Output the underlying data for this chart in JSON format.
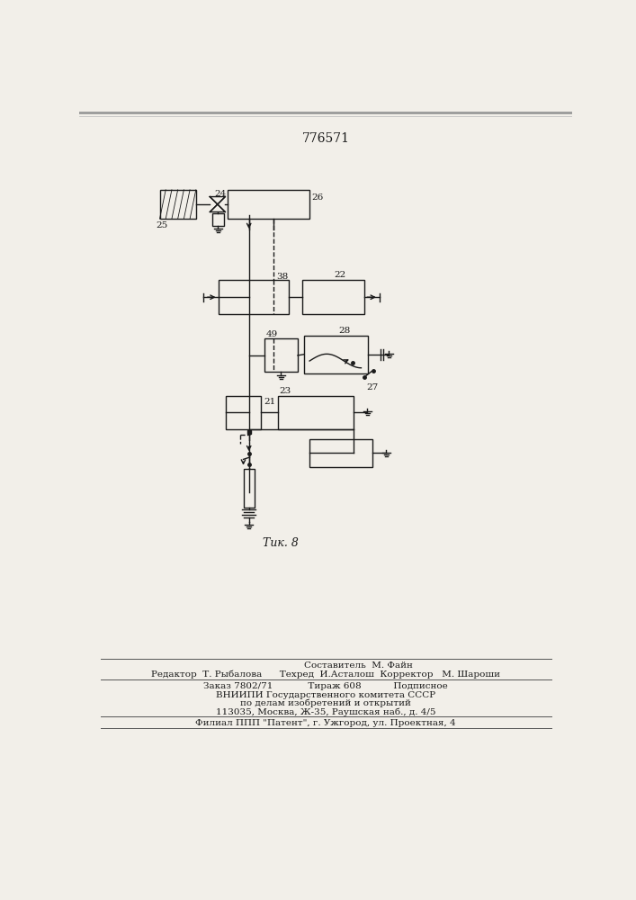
{
  "title": "776571",
  "fig_label": "Τик. 8",
  "background_color": "#f2efe9",
  "line_color": "#1a1a1a",
  "text_color": "#1a1a1a",
  "footer_lines": [
    "Составитель  М. Файн",
    "Редактор  Т. Рыбалова      Техред  И.Асталош  Корректор   М. Шароши",
    "Заказ 7802/71            Тираж 608           Подписное",
    "ВНИИПИ Государственного комитета СССР",
    "по делам изобретений и открытий",
    "113035, Москва, Ж-35, Раушская наб., д. 4/5",
    "Филиал ППП \"Патент\", г. Ужгород, ул. Проектная, 4"
  ]
}
